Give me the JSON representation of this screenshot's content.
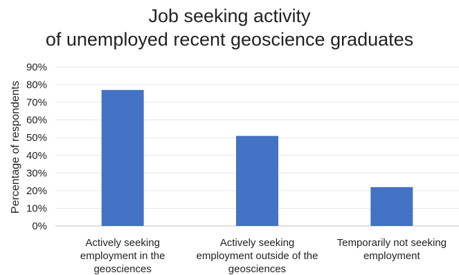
{
  "chart_data": {
    "type": "bar",
    "title_lines": [
      "Job seeking activity",
      "of unemployed recent geoscience graduates"
    ],
    "xlabel": "",
    "ylabel": "Percentage of respondents",
    "categories": [
      [
        "Actively seeking",
        "employment in the",
        "geosciences"
      ],
      [
        "Actively seeking",
        "employment outside of the",
        "geosciences"
      ],
      [
        "Temporarily not seeking",
        "employment"
      ]
    ],
    "values": [
      77,
      51,
      22
    ],
    "ylim": [
      0,
      90
    ],
    "yticks": [
      "0%",
      "10%",
      "20%",
      "30%",
      "40%",
      "50%",
      "60%",
      "70%",
      "80%",
      "90%"
    ],
    "grid": true,
    "legend": "none",
    "colors": {
      "bar": "#4472C4",
      "grid": "#e6e6e6"
    }
  }
}
